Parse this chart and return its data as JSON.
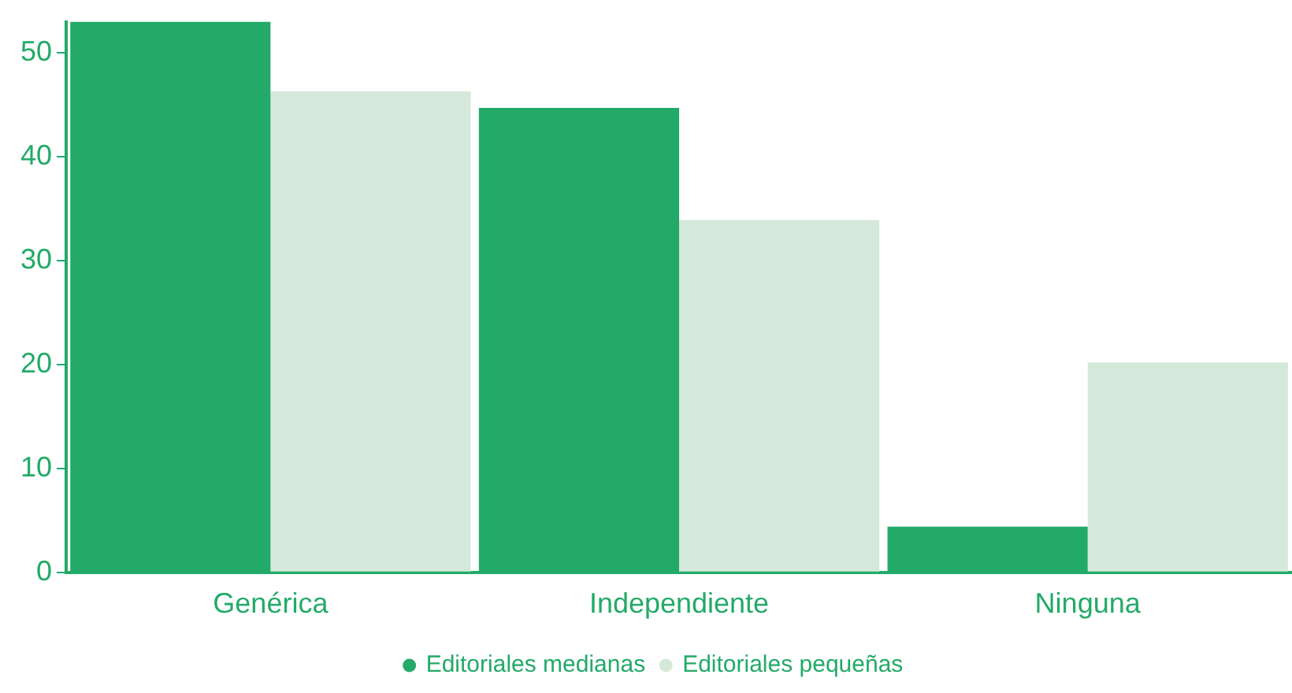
{
  "chart_data": {
    "type": "bar",
    "categories": [
      "Genérica",
      "Independiente",
      "Ninguna"
    ],
    "series": [
      {
        "name": "Editoriales medianas",
        "color": "#23aa68",
        "values": [
          53,
          44.7,
          4.4
        ]
      },
      {
        "name": "Editoriales pequeñas",
        "color": "#d5e9da",
        "values": [
          46.3,
          33.9,
          20.2
        ]
      }
    ],
    "ylim": [
      0,
      53
    ],
    "yticks": [
      0,
      10,
      20,
      30,
      40,
      50
    ],
    "grid": false,
    "legend": "bottom"
  }
}
